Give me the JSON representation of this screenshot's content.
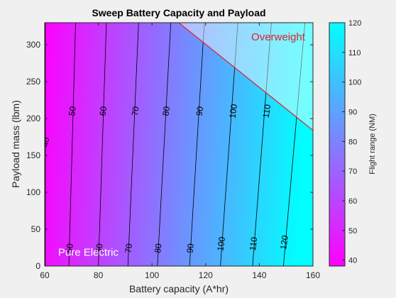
{
  "chart_data": {
    "type": "contour",
    "title": "Sweep Battery Capacity and Payload",
    "xlabel": "Battery capacity (A*hr)",
    "ylabel": "Payload mass (lbm)",
    "xlim": [
      60,
      160
    ],
    "ylim": [
      0,
      330
    ],
    "xticks": [
      60,
      80,
      100,
      120,
      140,
      160
    ],
    "yticks": [
      0,
      50,
      100,
      150,
      200,
      250,
      300
    ],
    "colorbar": {
      "label": "Flight range (NM)",
      "range": [
        38,
        120
      ],
      "ticks": [
        40,
        50,
        60,
        70,
        80,
        90,
        100,
        110,
        120
      ],
      "colormap": [
        "#ff00ff",
        "#00ffff"
      ]
    },
    "contour_levels": [
      40,
      50,
      60,
      70,
      80,
      90,
      100,
      110,
      120
    ],
    "contour_lines": [
      {
        "level": 40,
        "points": [
          [
            60.2,
            0
          ],
          [
            60.2,
            330
          ]
        ]
      },
      {
        "level": 50,
        "points": [
          [
            69,
            0
          ],
          [
            71.5,
            330
          ]
        ]
      },
      {
        "level": 60,
        "points": [
          [
            80,
            0
          ],
          [
            83,
            330
          ]
        ]
      },
      {
        "level": 70,
        "points": [
          [
            91,
            0
          ],
          [
            95,
            330
          ]
        ]
      },
      {
        "level": 80,
        "points": [
          [
            102,
            0
          ],
          [
            107,
            330
          ]
        ]
      },
      {
        "level": 90,
        "points": [
          [
            114,
            0
          ],
          [
            119.5,
            330
          ]
        ]
      },
      {
        "level": 100,
        "points": [
          [
            125.5,
            0
          ],
          [
            132,
            330
          ]
        ]
      },
      {
        "level": 110,
        "points": [
          [
            137.5,
            0
          ],
          [
            144.5,
            330
          ]
        ]
      },
      {
        "level": 120,
        "points": [
          [
            149,
            0
          ],
          [
            157,
            330
          ]
        ]
      }
    ],
    "contour_labels": [
      {
        "text": "40",
        "x": 60.6,
        "y": 168
      },
      {
        "text": "50",
        "x": 70.5,
        "y": 210
      },
      {
        "text": "60",
        "x": 82,
        "y": 210
      },
      {
        "text": "70",
        "x": 94,
        "y": 210
      },
      {
        "text": "80",
        "x": 105.5,
        "y": 210
      },
      {
        "text": "90",
        "x": 118,
        "y": 210
      },
      {
        "text": "100",
        "x": 130.5,
        "y": 210
      },
      {
        "text": "110",
        "x": 143,
        "y": 210
      },
      {
        "text": "50",
        "x": 69.5,
        "y": 24
      },
      {
        "text": "60",
        "x": 80.5,
        "y": 24
      },
      {
        "text": "70",
        "x": 91.5,
        "y": 24
      },
      {
        "text": "80",
        "x": 102.5,
        "y": 24
      },
      {
        "text": "90",
        "x": 114.5,
        "y": 24
      },
      {
        "text": "100",
        "x": 126,
        "y": 30
      },
      {
        "text": "110",
        "x": 138,
        "y": 30
      },
      {
        "text": "120",
        "x": 149.5,
        "y": 32
      }
    ],
    "regions": [
      {
        "name": "Overweight",
        "boundary": [
          [
            110,
            330
          ],
          [
            160,
            184
          ]
        ],
        "color": "#ffffff",
        "opacity": 0.45,
        "edge_color": "#e0202a"
      }
    ],
    "annotations": [
      {
        "text": "Pure Electric",
        "x": 65,
        "y": 14,
        "color": "#ffffff"
      },
      {
        "text": "Overweight",
        "x": 137,
        "y": 306,
        "color": "#e0202a"
      }
    ]
  }
}
